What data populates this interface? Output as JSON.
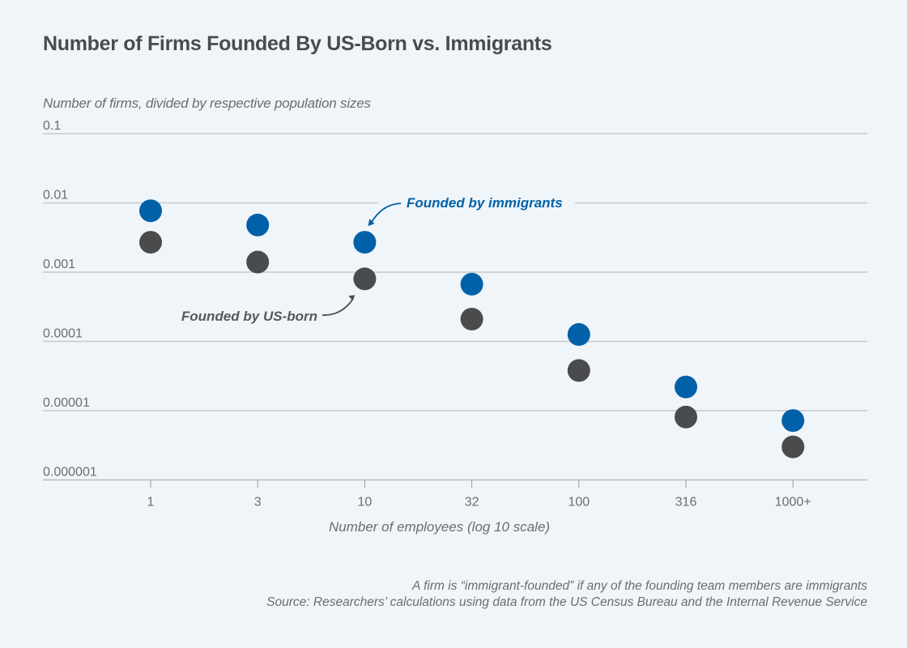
{
  "colors": {
    "background": "#f0f5fa",
    "immigrant": "#0061a8",
    "us_born": "#4a4b4d",
    "grid": "#c6c9cd",
    "text": "#4a4b4d",
    "muted_text": "#6b6d70"
  },
  "chart_data": {
    "type": "scatter",
    "title": "Number of Firms Founded By US-Born vs. Immigrants",
    "ylabel": "Number of firms, divided by respective population sizes",
    "xlabel": "Number of employees (log 10 scale)",
    "yscale": "log",
    "ylim": [
      1e-06,
      0.1
    ],
    "yticks": [
      0.1,
      0.01,
      0.001,
      0.0001,
      1e-05,
      1e-06
    ],
    "ytick_labels": [
      "0.1",
      "0.01",
      "0.001",
      "0.0001",
      "0.00001",
      "0.000001"
    ],
    "categories": [
      "1",
      "3",
      "10",
      "32",
      "100",
      "316",
      "1000+"
    ],
    "grid": true,
    "series": [
      {
        "name": "Founded by immigrants",
        "key": "immigrant",
        "values": [
          0.0077,
          0.0048,
          0.0027,
          0.00067,
          0.000126,
          2.2e-05,
          7.2e-06
        ]
      },
      {
        "name": "Founded by US-born",
        "key": "us_born",
        "values": [
          0.0027,
          0.0014,
          0.0008,
          0.00021,
          3.8e-05,
          8.1e-06,
          3e-06
        ]
      }
    ],
    "annotations": [
      {
        "text": "Founded by immigrants",
        "series": "immigrant",
        "points_to": "10"
      },
      {
        "text": "Founded by US-born",
        "series": "us_born",
        "points_to": "10"
      }
    ]
  },
  "footer": {
    "note": "A firm is “immigrant-founded” if any of the founding team members are immigrants",
    "source": "Source: Researchers’ calculations using data from the US Census Bureau and the Internal Revenue Service"
  }
}
